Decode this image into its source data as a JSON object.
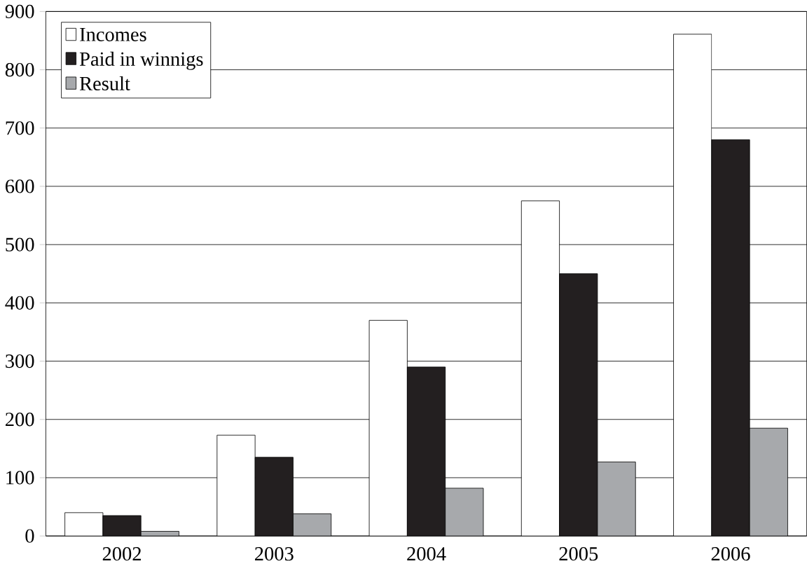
{
  "chart_data": {
    "type": "bar",
    "categories": [
      "2002",
      "2003",
      "2004",
      "2005",
      "2006"
    ],
    "series": [
      {
        "name": "Incomes",
        "color": "#ffffff",
        "values": [
          40,
          173,
          370,
          575,
          861
        ]
      },
      {
        "name": "Paid in winnigs",
        "color": "#231f20",
        "values": [
          35,
          135,
          290,
          450,
          680
        ]
      },
      {
        "name": "Result",
        "color": "#a7a9ac",
        "values": [
          8,
          38,
          82,
          127,
          185
        ]
      }
    ],
    "ylim": [
      0,
      900
    ],
    "yticks": [
      0,
      100,
      200,
      300,
      400,
      500,
      600,
      700,
      800,
      900
    ],
    "grid": "y",
    "legend": "top left"
  }
}
